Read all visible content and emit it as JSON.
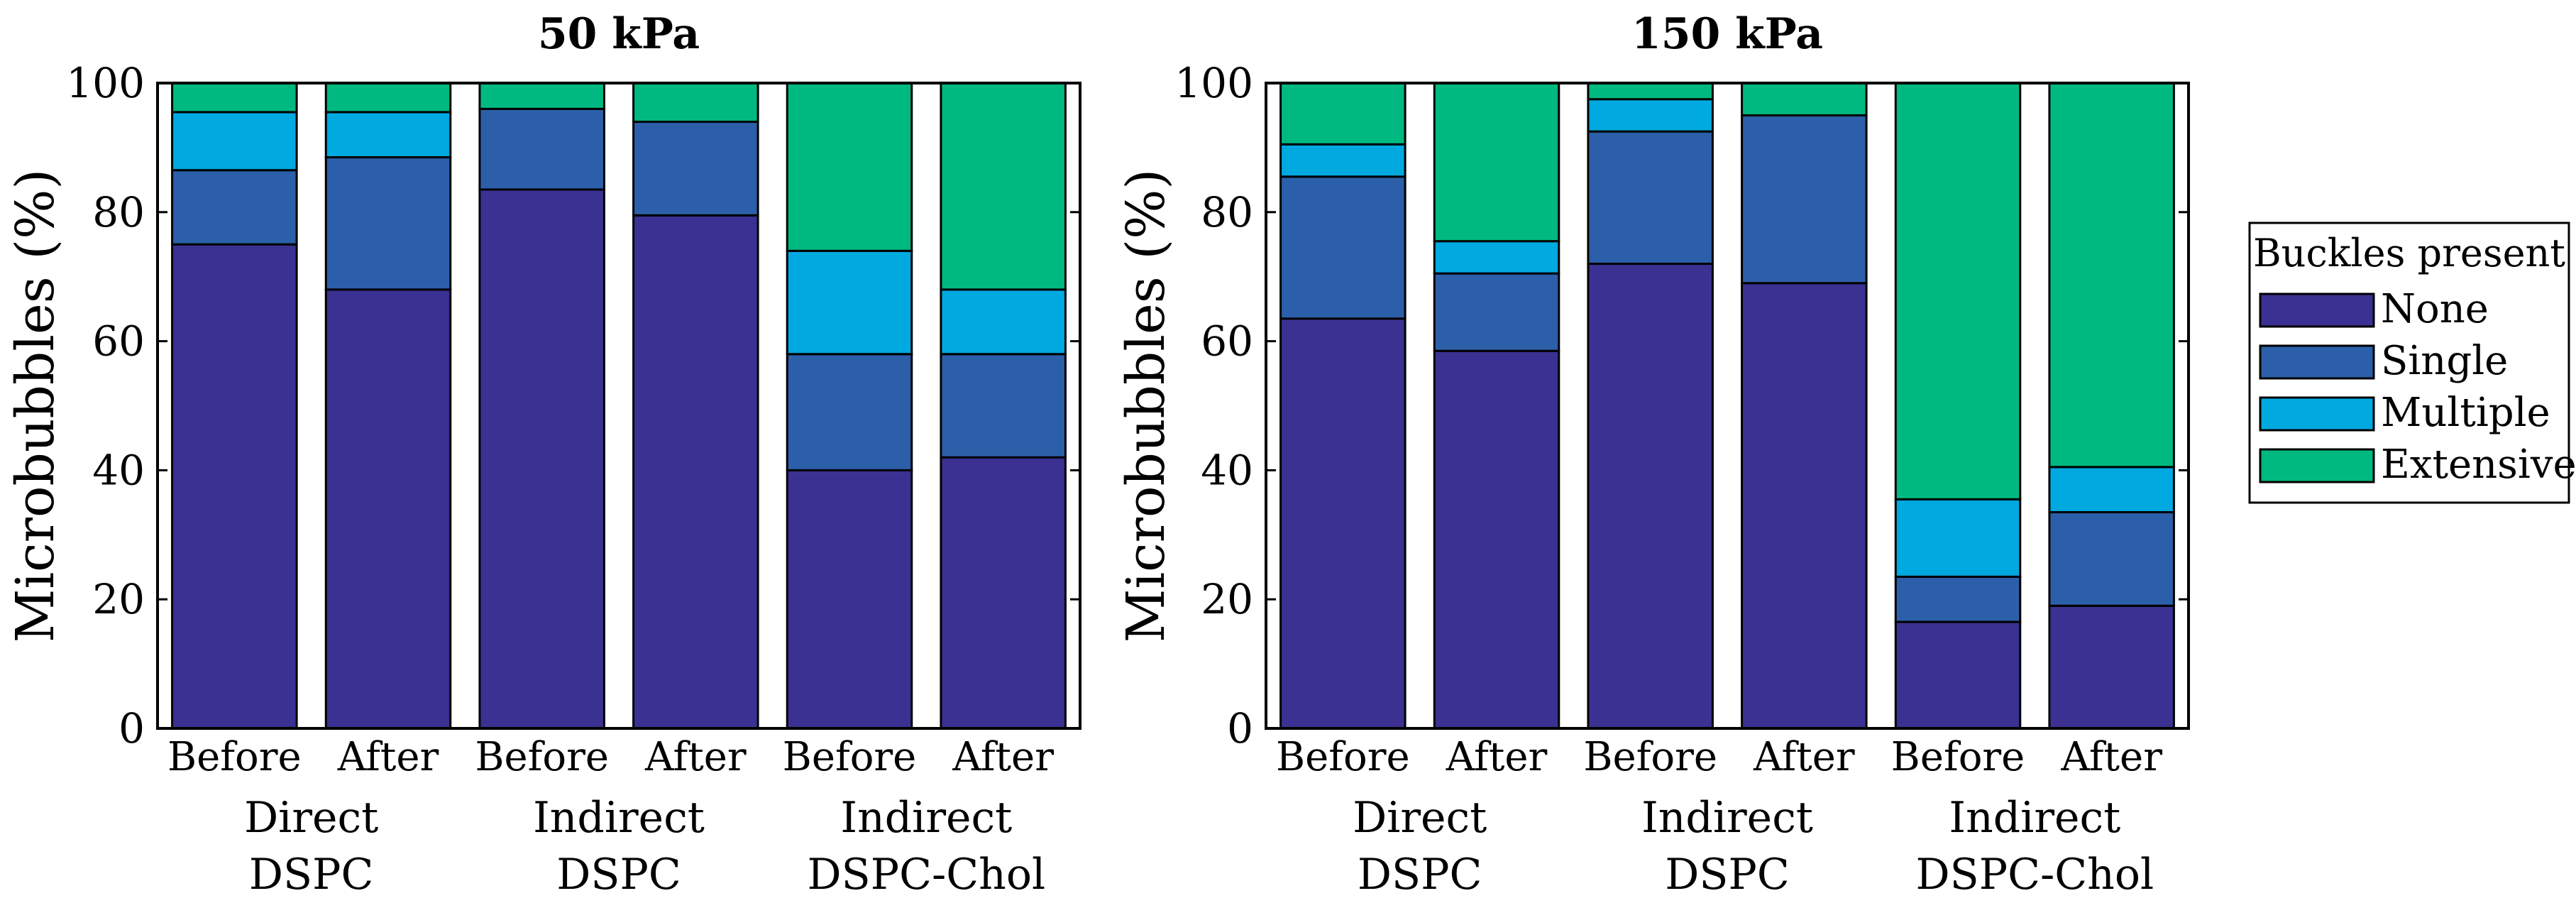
{
  "colors": {
    "None": "#3A3192",
    "Single": "#2C5FA9",
    "Multiple": "#00A9E0",
    "Extensive": "#00B981"
  },
  "legend": {
    "title": "Buckles present",
    "entries": [
      "None",
      "Single",
      "Multiple",
      "Extensive"
    ]
  },
  "chart_data": [
    {
      "type": "bar",
      "stacked": true,
      "title": "50 kPa",
      "ylabel": "Microbubbles (%)",
      "ylim": [
        0,
        100
      ],
      "yticks": [
        "0",
        "20",
        "40",
        "60",
        "80",
        "100"
      ],
      "categories": [
        "Before",
        "After",
        "Before",
        "After",
        "Before",
        "After"
      ],
      "groups": [
        {
          "line1": "Direct",
          "line2": "DSPC"
        },
        {
          "line1": "Indirect",
          "line2": "DSPC"
        },
        {
          "line1": "Indirect",
          "line2": "DSPC-Chol"
        }
      ],
      "series": [
        {
          "name": "None",
          "values": [
            75,
            68,
            83.5,
            79.5,
            40,
            42
          ]
        },
        {
          "name": "Single",
          "values": [
            11.5,
            20.5,
            12.5,
            14.5,
            18,
            16
          ]
        },
        {
          "name": "Multiple",
          "values": [
            9,
            7,
            0,
            0,
            16,
            10
          ]
        },
        {
          "name": "Extensive",
          "values": [
            4.5,
            4.5,
            4,
            6,
            26,
            32
          ]
        }
      ]
    },
    {
      "type": "bar",
      "stacked": true,
      "title": "150 kPa",
      "ylabel": "Microbubbles (%)",
      "ylim": [
        0,
        100
      ],
      "yticks": [
        "0",
        "20",
        "40",
        "60",
        "80",
        "100"
      ],
      "categories": [
        "Before",
        "After",
        "Before",
        "After",
        "Before",
        "After"
      ],
      "groups": [
        {
          "line1": "Direct",
          "line2": "DSPC"
        },
        {
          "line1": "Indirect",
          "line2": "DSPC"
        },
        {
          "line1": "Indirect",
          "line2": "DSPC-Chol"
        }
      ],
      "series": [
        {
          "name": "None",
          "values": [
            63.5,
            58.5,
            72,
            69,
            16.5,
            19
          ]
        },
        {
          "name": "Single",
          "values": [
            22,
            12,
            20.5,
            26,
            7,
            14.5
          ]
        },
        {
          "name": "Multiple",
          "values": [
            5,
            5,
            5,
            0,
            12,
            7
          ]
        },
        {
          "name": "Extensive",
          "values": [
            9.5,
            24.5,
            2.5,
            5,
            64.5,
            59.5
          ]
        }
      ]
    }
  ]
}
